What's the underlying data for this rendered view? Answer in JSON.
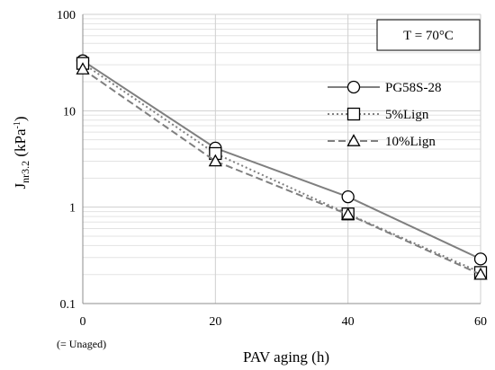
{
  "chart_data": {
    "type": "line",
    "title": "",
    "xlabel": "PAV aging (h)",
    "ylabel": {
      "main": "J",
      "sub": "nr3.2",
      "unit_open": " (kPa",
      "unit_sup": "-1",
      "unit_close": ")"
    },
    "x": [
      0,
      20,
      40,
      60
    ],
    "x_ticks": [
      "0",
      "20",
      "40",
      "60"
    ],
    "x_note": "(= Unaged)",
    "xlim": [
      0,
      60
    ],
    "y_scale": "log",
    "ylim": [
      0.1,
      100
    ],
    "y_ticks": [
      {
        "value": 0.1,
        "label": "0.1"
      },
      {
        "value": 1,
        "label": "1"
      },
      {
        "value": 10,
        "label": "10"
      },
      {
        "value": 100,
        "label": "100"
      }
    ],
    "grid": true,
    "legend_position": "top-right",
    "annotation": "T = 70°C",
    "series": [
      {
        "name": "PG58S-28",
        "marker": "circle",
        "line": "solid",
        "color": "#7f7f7f",
        "values": [
          33,
          4.1,
          1.28,
          0.29
        ]
      },
      {
        "name": "5%Lign",
        "marker": "square",
        "line": "dotted",
        "color": "#7f7f7f",
        "values": [
          31,
          3.6,
          0.85,
          0.21
        ]
      },
      {
        "name": "10%Lign",
        "marker": "triangle",
        "line": "dashed",
        "color": "#7f7f7f",
        "values": [
          27,
          3.0,
          0.84,
          0.2
        ]
      }
    ]
  }
}
